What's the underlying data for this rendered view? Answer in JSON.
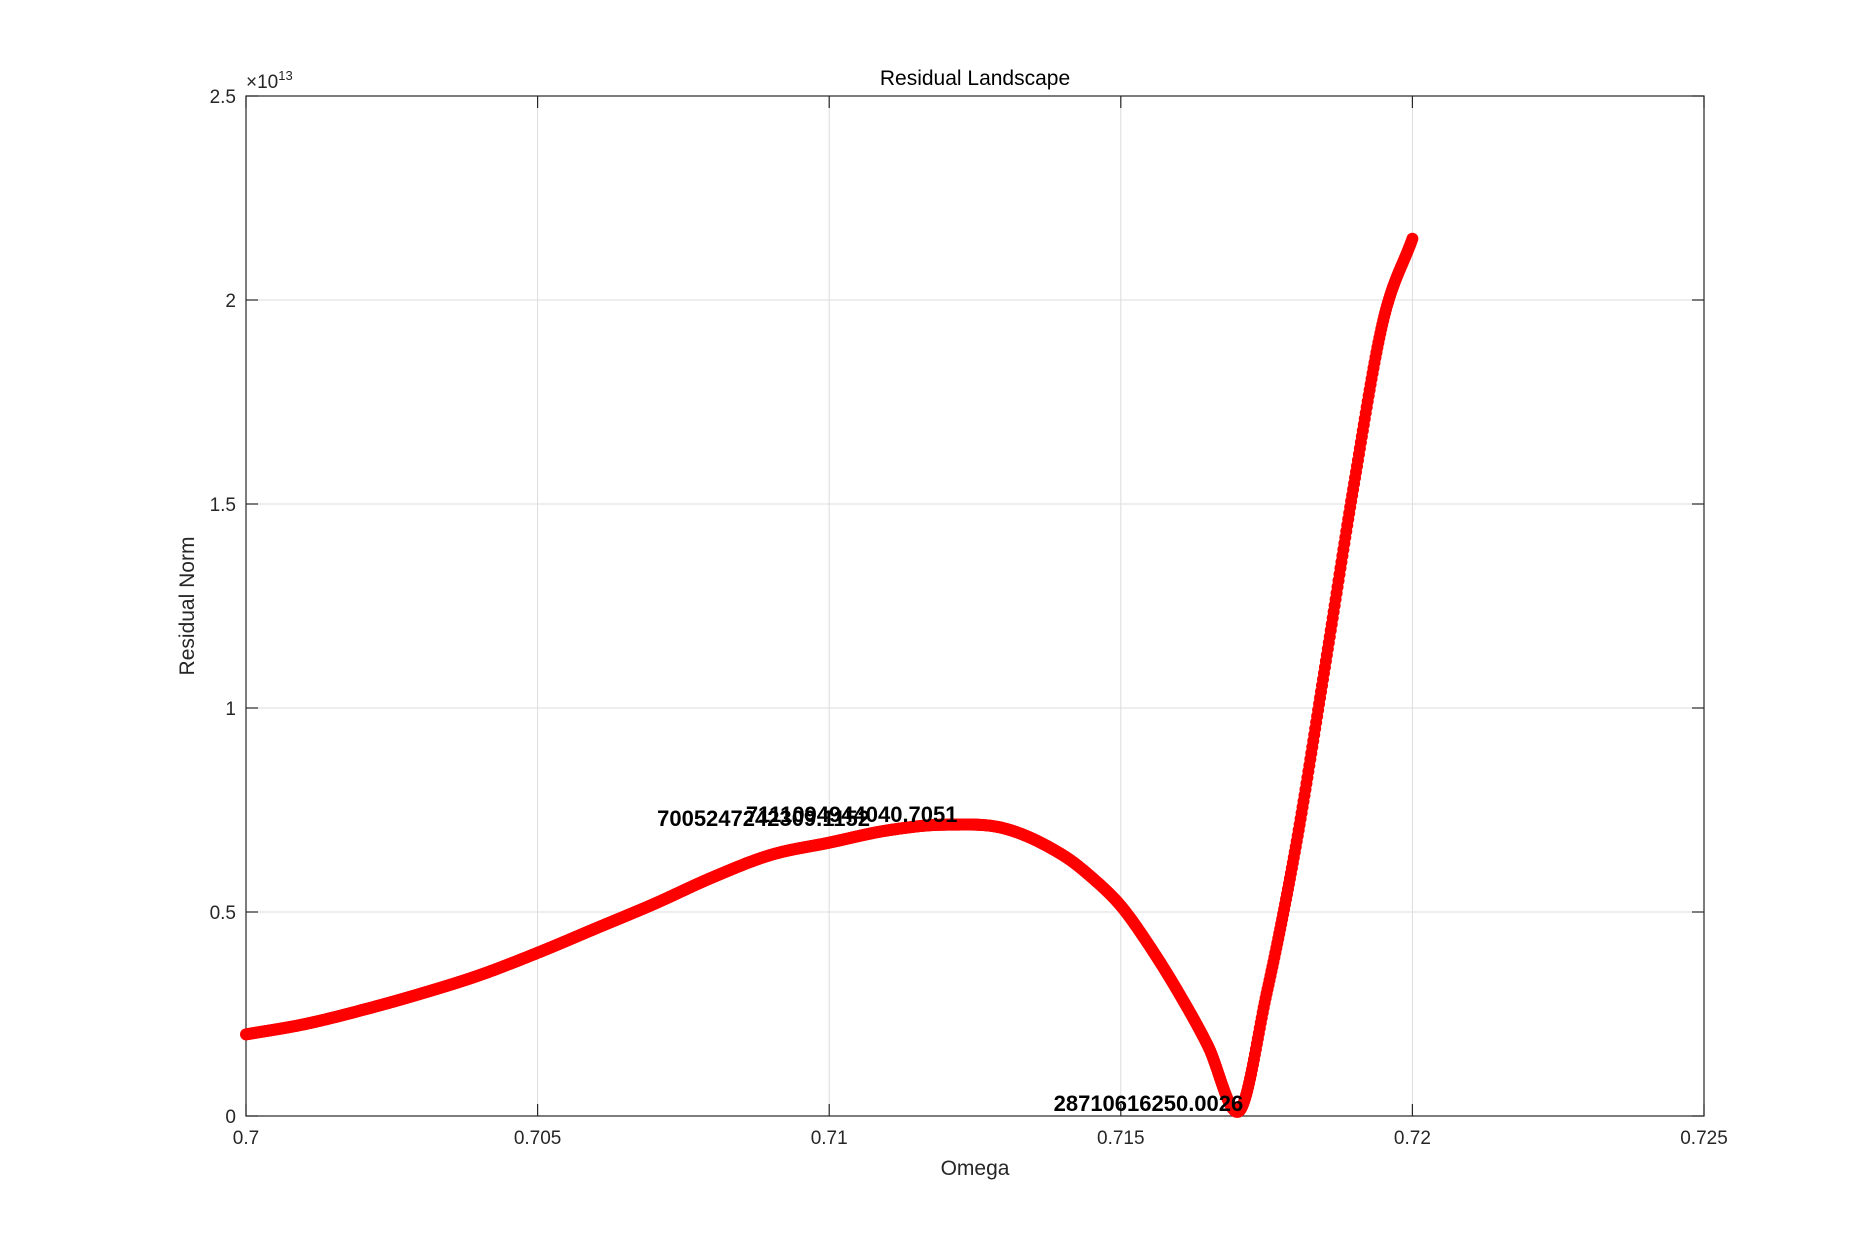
{
  "chart_data": {
    "type": "scatter",
    "title": "Residual Landscape",
    "xlabel": "Omega",
    "ylabel": "Residual Norm",
    "xlim": [
      0.7,
      0.725
    ],
    "ylim": [
      0,
      2.5
    ],
    "y_multiplier": {
      "base": "×10",
      "exponent": "13"
    },
    "x_ticks": [
      0.7,
      0.705,
      0.71,
      0.715,
      0.72,
      0.725
    ],
    "x_tick_labels": [
      "0.7",
      "0.705",
      "0.71",
      "0.715",
      "0.72",
      "0.725"
    ],
    "y_ticks": [
      0,
      0.5,
      1,
      1.5,
      2,
      2.5
    ],
    "y_tick_labels": [
      "0",
      "0.5",
      "1",
      "1.5",
      "2",
      "2.5"
    ],
    "grid": true,
    "color": "#ff0000",
    "series": [
      {
        "points": [
          [
            0.7,
            0.2
          ],
          [
            0.701,
            0.225
          ],
          [
            0.702,
            0.26
          ],
          [
            0.703,
            0.3
          ],
          [
            0.704,
            0.345
          ],
          [
            0.705,
            0.4
          ],
          [
            0.706,
            0.46
          ],
          [
            0.707,
            0.52
          ],
          [
            0.708,
            0.585
          ],
          [
            0.709,
            0.64
          ],
          [
            0.71,
            0.67
          ],
          [
            0.711,
            0.7
          ],
          [
            0.712,
            0.714
          ],
          [
            0.713,
            0.705
          ],
          [
            0.714,
            0.64
          ],
          [
            0.7145,
            0.585
          ],
          [
            0.715,
            0.515
          ],
          [
            0.7155,
            0.415
          ],
          [
            0.716,
            0.3
          ],
          [
            0.7165,
            0.17
          ],
          [
            0.717,
            0.01
          ],
          [
            0.7175,
            0.3
          ],
          [
            0.718,
            0.66
          ],
          [
            0.7185,
            1.1
          ],
          [
            0.719,
            1.55
          ],
          [
            0.7195,
            1.95
          ],
          [
            0.72,
            2.15
          ]
        ]
      }
    ],
    "annotations": [
      {
        "text": "7005247242309.1152",
        "x": 0.7107,
        "y": 0.7005
      },
      {
        "text": "7111094944040.7051",
        "x": 0.7122,
        "y": 0.7111
      },
      {
        "text": "28710616250.0026",
        "x": 0.7171,
        "y": 0.0029
      }
    ]
  }
}
